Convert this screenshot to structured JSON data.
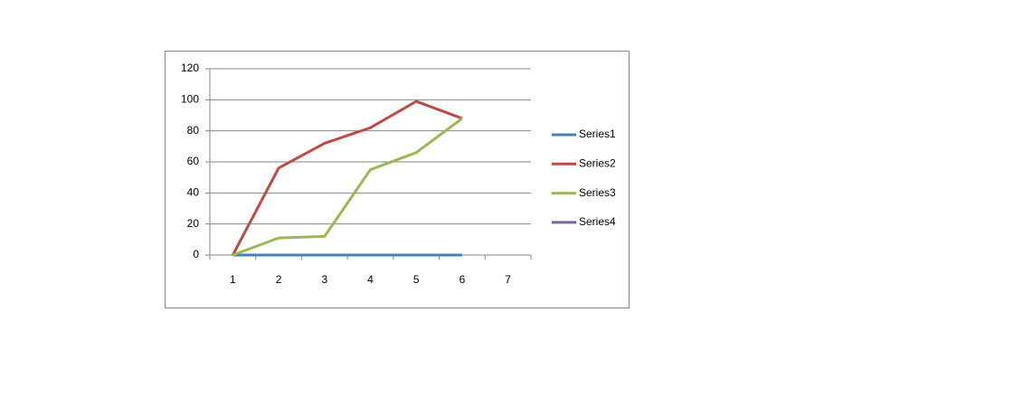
{
  "chart_data": {
    "type": "line",
    "categories": [
      "1",
      "2",
      "3",
      "4",
      "5",
      "6",
      "7"
    ],
    "series": [
      {
        "name": "Series1",
        "color": "#4a7ebb",
        "values": [
          0,
          0,
          0,
          0,
          0,
          0,
          null
        ]
      },
      {
        "name": "Series2",
        "color": "#be4b48",
        "values": [
          0,
          56,
          72,
          82,
          99,
          88,
          null
        ]
      },
      {
        "name": "Series3",
        "color": "#98b954",
        "values": [
          0,
          11,
          12,
          55,
          66,
          88,
          null
        ]
      },
      {
        "name": "Series4",
        "color": "#7d60a0",
        "values": [
          null,
          null,
          null,
          null,
          null,
          null,
          null
        ]
      }
    ],
    "ylim": [
      0,
      120
    ],
    "yticks": [
      0,
      20,
      40,
      60,
      80,
      100,
      120
    ],
    "grid": true,
    "legend": "right"
  }
}
